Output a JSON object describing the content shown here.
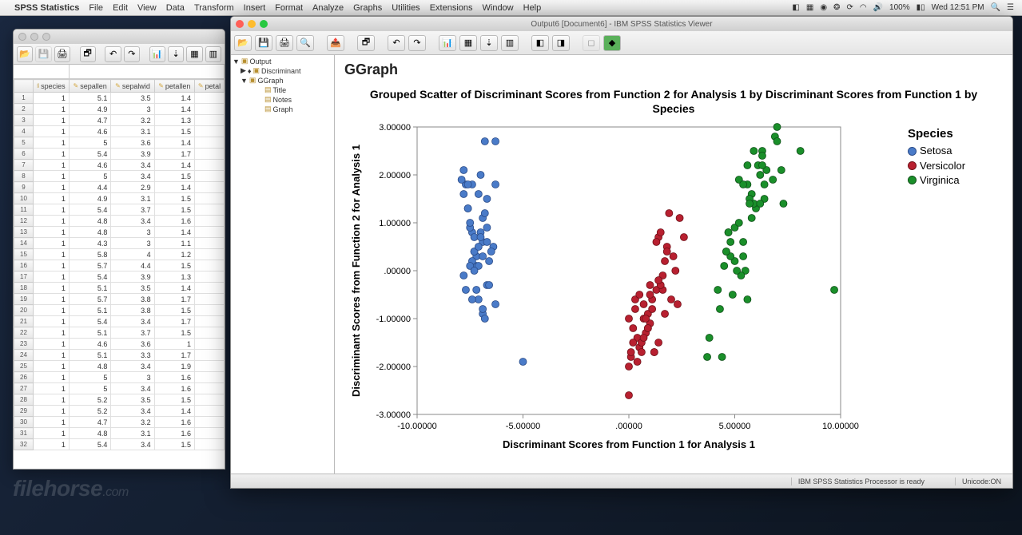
{
  "menubar": {
    "app_name": "SPSS Statistics",
    "items": [
      "File",
      "Edit",
      "View",
      "Data",
      "Transform",
      "Insert",
      "Format",
      "Analyze",
      "Graphs",
      "Utilities",
      "Extensions",
      "Window",
      "Help"
    ],
    "right_battery": "100%",
    "right_time": "Wed 12:51 PM"
  },
  "data_editor": {
    "columns": [
      "species",
      "sepallen",
      "sepalwid",
      "petallen",
      "petal"
    ],
    "rows": [
      [
        1,
        5.1,
        3.5,
        1.4
      ],
      [
        1,
        4.9,
        3.0,
        1.4
      ],
      [
        1,
        4.7,
        3.2,
        1.3
      ],
      [
        1,
        4.6,
        3.1,
        1.5
      ],
      [
        1,
        5.0,
        3.6,
        1.4
      ],
      [
        1,
        5.4,
        3.9,
        1.7
      ],
      [
        1,
        4.6,
        3.4,
        1.4
      ],
      [
        1,
        5.0,
        3.4,
        1.5
      ],
      [
        1,
        4.4,
        2.9,
        1.4
      ],
      [
        1,
        4.9,
        3.1,
        1.5
      ],
      [
        1,
        5.4,
        3.7,
        1.5
      ],
      [
        1,
        4.8,
        3.4,
        1.6
      ],
      [
        1,
        4.8,
        3.0,
        1.4
      ],
      [
        1,
        4.3,
        3.0,
        1.1
      ],
      [
        1,
        5.8,
        4.0,
        1.2
      ],
      [
        1,
        5.7,
        4.4,
        1.5
      ],
      [
        1,
        5.4,
        3.9,
        1.3
      ],
      [
        1,
        5.1,
        3.5,
        1.4
      ],
      [
        1,
        5.7,
        3.8,
        1.7
      ],
      [
        1,
        5.1,
        3.8,
        1.5
      ],
      [
        1,
        5.4,
        3.4,
        1.7
      ],
      [
        1,
        5.1,
        3.7,
        1.5
      ],
      [
        1,
        4.6,
        3.6,
        1.0
      ],
      [
        1,
        5.1,
        3.3,
        1.7
      ],
      [
        1,
        4.8,
        3.4,
        1.9
      ],
      [
        1,
        5.0,
        3.0,
        1.6
      ],
      [
        1,
        5.0,
        3.4,
        1.6
      ],
      [
        1,
        5.2,
        3.5,
        1.5
      ],
      [
        1,
        5.2,
        3.4,
        1.4
      ],
      [
        1,
        4.7,
        3.2,
        1.6
      ],
      [
        1,
        4.8,
        3.1,
        1.6
      ],
      [
        1,
        5.4,
        3.4,
        1.5
      ]
    ]
  },
  "output_viewer": {
    "window_title": "Output6 [Document6] - IBM SPSS Statistics Viewer",
    "tree": {
      "root": "Output",
      "discriminant": "Discriminant",
      "ggraph": "GGraph",
      "title": "Title",
      "notes": "Notes",
      "graph": "Graph"
    },
    "heading": "GGraph",
    "status_processor": "IBM SPSS Statistics Processor is ready",
    "status_unicode": "Unicode:ON"
  },
  "chart": {
    "type": "scatter",
    "title": "Grouped Scatter of Discriminant Scores from Function 2 for Analysis 1 by Discriminant Scores from Function 1 by Species",
    "xlabel": "Discriminant Scores from Function 1 for Analysis 1",
    "ylabel": "Discriminant Scores from Function 2 for Analysis 1",
    "title_fontsize": 14,
    "label_fontsize": 13,
    "tick_fontsize": 11,
    "background_color": "#ffffff",
    "border_color": "#888888",
    "xlim": [
      -10,
      10
    ],
    "ylim": [
      -3,
      3
    ],
    "xticks": [
      -10,
      -5,
      0,
      5,
      10
    ],
    "xtick_labels": [
      "-10.00000",
      "-5.00000",
      ".00000",
      "5.00000",
      "10.00000"
    ],
    "yticks": [
      -3,
      -2,
      -1,
      0,
      1,
      2,
      3
    ],
    "ytick_labels": [
      "-3.00000",
      "-2.00000",
      "-1.00000",
      ".00000",
      "1.00000",
      "2.00000",
      "3.00000"
    ],
    "legend_title": "Species",
    "series": [
      {
        "name": "Setosa",
        "color": "#4a7bc8",
        "border": "#2a4b88",
        "points": [
          [
            -7.7,
            1.8
          ],
          [
            -7.2,
            0.3
          ],
          [
            -7.4,
            0.8
          ],
          [
            -6.9,
            0.6
          ],
          [
            -7.8,
            1.6
          ],
          [
            -6.3,
            2.7
          ],
          [
            -7.2,
            0.1
          ],
          [
            -7.5,
            0.9
          ],
          [
            -6.7,
            -0.3
          ],
          [
            -7.3,
            0.7
          ],
          [
            -7.4,
            1.8
          ],
          [
            -6.9,
            1.1
          ],
          [
            -7.3,
            0.4
          ],
          [
            -7.7,
            -0.4
          ],
          [
            -7.9,
            1.9
          ],
          [
            -6.8,
            2.7
          ],
          [
            -6.7,
            1.5
          ],
          [
            -7.6,
            1.3
          ],
          [
            -6.3,
            1.8
          ],
          [
            -7.0,
            2.0
          ],
          [
            -6.4,
            0.5
          ],
          [
            -7.1,
            1.6
          ],
          [
            -7.8,
            -0.1
          ],
          [
            -6.3,
            -0.7
          ],
          [
            -6.6,
            0.2
          ],
          [
            -7.1,
            -0.6
          ],
          [
            -7.4,
            0.2
          ],
          [
            -7.6,
            1.3
          ],
          [
            -7.5,
            1.0
          ],
          [
            -7.3,
            0.4
          ],
          [
            -7.1,
            0.1
          ],
          [
            -6.7,
            0.6
          ],
          [
            -7.8,
            2.1
          ],
          [
            -7.6,
            1.8
          ],
          [
            -6.9,
            -0.9
          ],
          [
            -7.5,
            0.1
          ],
          [
            -6.8,
            1.2
          ],
          [
            -7.2,
            -0.4
          ],
          [
            -7.0,
            0.8
          ],
          [
            -6.5,
            0.4
          ],
          [
            -6.9,
            -0.8
          ],
          [
            -7.4,
            -0.6
          ],
          [
            -7.3,
            0.0
          ],
          [
            -7.0,
            0.7
          ],
          [
            -6.6,
            -0.3
          ],
          [
            -6.8,
            -1.0
          ],
          [
            -5.0,
            -1.9
          ],
          [
            -7.1,
            0.5
          ],
          [
            -6.7,
            0.9
          ],
          [
            -6.9,
            0.3
          ]
        ]
      },
      {
        "name": "Versicolor",
        "color": "#b82030",
        "border": "#701018",
        "points": [
          [
            1.4,
            0.7
          ],
          [
            0.9,
            -0.9
          ],
          [
            1.8,
            0.5
          ],
          [
            0.5,
            -1.6
          ],
          [
            1.6,
            -0.1
          ],
          [
            0.7,
            -1.0
          ],
          [
            1.9,
            1.2
          ],
          [
            0.1,
            -1.8
          ],
          [
            1.3,
            -0.4
          ],
          [
            0.4,
            -1.4
          ],
          [
            0.0,
            -2.6
          ],
          [
            1.1,
            -0.6
          ],
          [
            0.6,
            -1.5
          ],
          [
            1.7,
            0.2
          ],
          [
            0.2,
            -1.2
          ],
          [
            1.5,
            0.8
          ],
          [
            1.0,
            -1.1
          ],
          [
            0.3,
            -0.8
          ],
          [
            1.2,
            -1.7
          ],
          [
            0.8,
            -1.3
          ],
          [
            2.4,
            1.1
          ],
          [
            1.0,
            -0.3
          ],
          [
            2.0,
            -0.6
          ],
          [
            1.4,
            -1.5
          ],
          [
            1.6,
            -0.4
          ],
          [
            1.8,
            0.4
          ],
          [
            2.2,
            0.0
          ],
          [
            2.6,
            0.7
          ],
          [
            1.7,
            -0.9
          ],
          [
            0.2,
            -1.5
          ],
          [
            0.4,
            -1.9
          ],
          [
            0.1,
            -1.7
          ],
          [
            0.9,
            -1.2
          ],
          [
            2.3,
            -0.7
          ],
          [
            1.1,
            -0.8
          ],
          [
            1.3,
            0.6
          ],
          [
            2.1,
            0.3
          ],
          [
            1.2,
            -1.7
          ],
          [
            0.3,
            -0.6
          ],
          [
            0.7,
            -1.4
          ],
          [
            0.6,
            -1.7
          ],
          [
            1.5,
            -0.3
          ],
          [
            0.9,
            -1.2
          ],
          [
            0.0,
            -2.0
          ],
          [
            0.8,
            -1.0
          ],
          [
            0.5,
            -0.5
          ],
          [
            1.0,
            -0.5
          ],
          [
            1.4,
            -0.2
          ],
          [
            0.0,
            -1.0
          ],
          [
            0.7,
            -0.7
          ]
        ]
      },
      {
        "name": "Virginica",
        "color": "#1a8f2a",
        "border": "#0f5018",
        "points": [
          [
            6.3,
            2.5
          ],
          [
            4.6,
            0.4
          ],
          [
            6.0,
            1.3
          ],
          [
            5.0,
            0.2
          ],
          [
            5.8,
            1.6
          ],
          [
            7.2,
            2.1
          ],
          [
            3.8,
            -1.4
          ],
          [
            6.4,
            1.8
          ],
          [
            5.5,
            0.0
          ],
          [
            6.9,
            2.8
          ],
          [
            5.2,
            1.9
          ],
          [
            5.4,
            0.6
          ],
          [
            5.9,
            1.4
          ],
          [
            4.3,
            -0.8
          ],
          [
            4.8,
            0.3
          ],
          [
            5.6,
            2.2
          ],
          [
            5.7,
            1.5
          ],
          [
            7.0,
            3.0
          ],
          [
            8.1,
            2.5
          ],
          [
            3.7,
            -1.8
          ],
          [
            6.2,
            2.0
          ],
          [
            4.5,
            0.1
          ],
          [
            7.3,
            1.4
          ],
          [
            4.9,
            -0.5
          ],
          [
            5.8,
            1.1
          ],
          [
            6.5,
            2.1
          ],
          [
            4.7,
            0.8
          ],
          [
            4.7,
            0.8
          ],
          [
            5.4,
            0.3
          ],
          [
            5.6,
            -0.6
          ],
          [
            6.4,
            1.5
          ],
          [
            7.0,
            2.7
          ],
          [
            5.3,
            -0.1
          ],
          [
            5.1,
            0.0
          ],
          [
            4.4,
            -1.8
          ],
          [
            6.8,
            1.9
          ],
          [
            5.6,
            1.8
          ],
          [
            5.7,
            1.4
          ],
          [
            4.8,
            0.6
          ],
          [
            6.1,
            2.2
          ],
          [
            6.3,
            2.4
          ],
          [
            5.9,
            2.5
          ],
          [
            4.6,
            0.4
          ],
          [
            6.2,
            1.4
          ],
          [
            6.3,
            2.2
          ],
          [
            5.4,
            1.8
          ],
          [
            4.2,
            -0.4
          ],
          [
            5.0,
            0.9
          ],
          [
            9.7,
            -0.4
          ],
          [
            5.2,
            1.0
          ]
        ]
      }
    ]
  },
  "watermark": "filehorse",
  "watermark_suffix": ".com"
}
